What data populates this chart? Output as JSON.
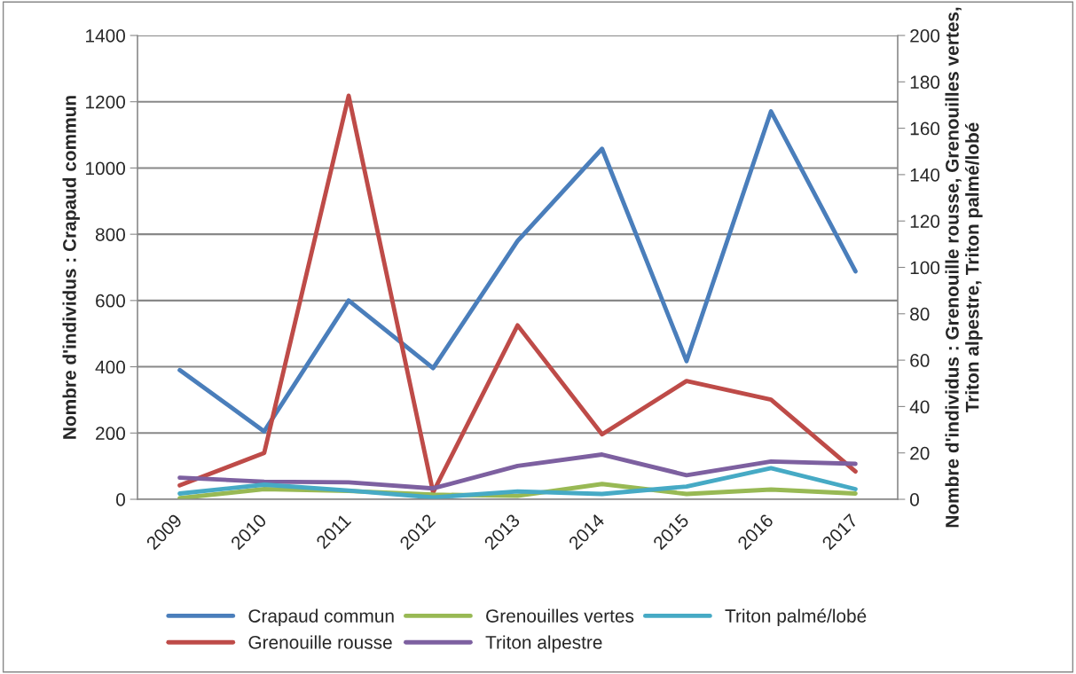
{
  "chart_data": {
    "type": "line",
    "ylabel": "Nombre d'individus : Crapaud commun",
    "y2label": "Nombre d'individus : Grenouille rousse, Grenouilles vertes, Triton alpestre, Triton palmé/lobé",
    "categories": [
      "2009",
      "2010",
      "2011",
      "2012",
      "2013",
      "2014",
      "2015",
      "2016",
      "2017"
    ],
    "series": [
      {
        "name": "Crapaud commun",
        "color": "#4a7ebb",
        "values": [
          390,
          205,
          600,
          396,
          780,
          1058,
          417,
          1171,
          688
        ]
      },
      {
        "name": "Grenouille rousse",
        "color": "#be4b48",
        "axis": "y2",
        "values": [
          6,
          20,
          174,
          3,
          75,
          28,
          51,
          43,
          12
        ]
      },
      {
        "name": "Grenouilles vertes",
        "color": "#98b954",
        "axis": "y2",
        "values": [
          0.5,
          4.4,
          3.6,
          2,
          1.5,
          6.6,
          2.3,
          4.2,
          2.5
        ]
      },
      {
        "name": "Triton alpestre",
        "color": "#7d60a0",
        "axis": "y2",
        "values": [
          9.3,
          7.6,
          7.3,
          4.7,
          14.4,
          19.3,
          10.4,
          16.3,
          15.3
        ]
      },
      {
        "name": "Triton palmé/lobé",
        "color": "#46aac5",
        "axis": "y2",
        "values": [
          2.5,
          6.3,
          3.8,
          0.8,
          3.4,
          2.3,
          5.5,
          13.4,
          4.4
        ]
      }
    ],
    "ylim": [
      0,
      1400
    ],
    "yticks": [
      0,
      200,
      400,
      600,
      800,
      1000,
      1200,
      1400
    ],
    "y2lim": [
      0,
      200
    ],
    "y2ticks": [
      0,
      20,
      40,
      60,
      80,
      100,
      120,
      140,
      160,
      180,
      200
    ],
    "grid": "y",
    "legend": "bottom",
    "marker": "none",
    "line_style": "solid"
  }
}
